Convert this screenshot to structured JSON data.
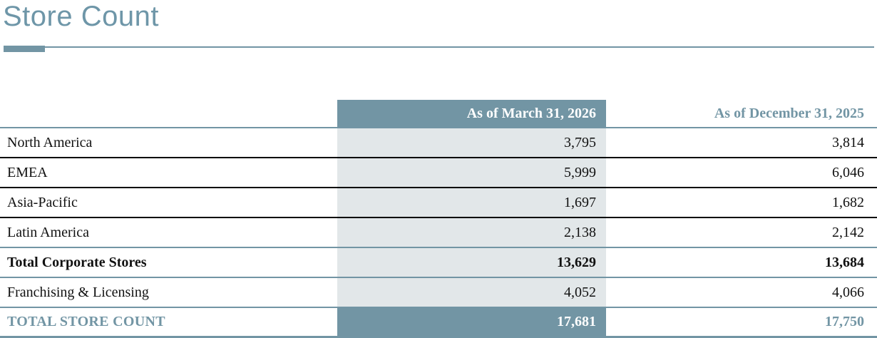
{
  "page": {
    "title": "Store Count"
  },
  "colors": {
    "accent_steel_blue": "#7295a4",
    "title_text": "#6e96a8",
    "shaded_column": "#e2e7e9",
    "row_divider_black": "#000000",
    "header_text_on_fill": "#ffffff"
  },
  "table": {
    "column_headers": [
      "As of March 31, 2026",
      "As of December 31, 2025"
    ],
    "rows": [
      {
        "label": "North America",
        "values": [
          "3,795",
          "3,814"
        ]
      },
      {
        "label": "EMEA",
        "values": [
          "5,999",
          "6,046"
        ]
      },
      {
        "label": "Asia-Pacific",
        "values": [
          "1,697",
          "1,682"
        ]
      },
      {
        "label": "Latin America",
        "values": [
          "2,138",
          "2,142"
        ]
      },
      {
        "label": "Total Corporate Stores",
        "values": [
          "13,629",
          "13,684"
        ]
      },
      {
        "label": "Franchising & Licensing",
        "values": [
          "4,052",
          "4,066"
        ]
      },
      {
        "label": "TOTAL STORE COUNT",
        "values": [
          "17,681",
          "17,750"
        ]
      }
    ]
  }
}
